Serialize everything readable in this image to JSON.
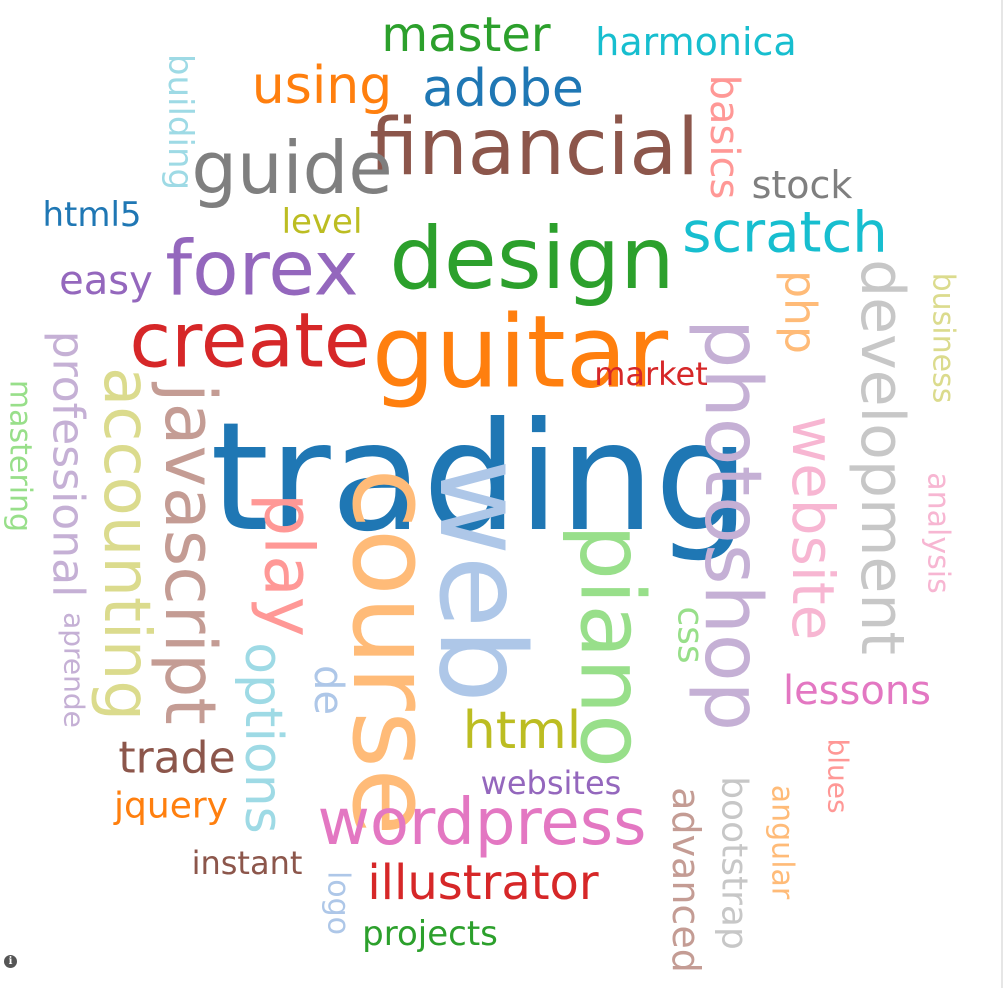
{
  "chart_data": {
    "type": "wordcloud",
    "title": "",
    "words": [
      {
        "text": "trading",
        "weight": 100,
        "color": "#1f77b4"
      },
      {
        "text": "guitar",
        "weight": 64,
        "color": "#ff7f0e"
      },
      {
        "text": "design",
        "weight": 60,
        "color": "#2ca02c"
      },
      {
        "text": "web",
        "weight": 74,
        "color": "#aec7e8"
      },
      {
        "text": "course",
        "weight": 68,
        "color": "#ffbb78"
      },
      {
        "text": "piano",
        "weight": 56,
        "color": "#98df8a"
      },
      {
        "text": "photoshop",
        "weight": 52,
        "color": "#c5b0d5"
      },
      {
        "text": "create",
        "weight": 52,
        "color": "#d62728"
      },
      {
        "text": "financial",
        "weight": 50,
        "color": "#8c564b"
      },
      {
        "text": "forex",
        "weight": 48,
        "color": "#9467bd"
      },
      {
        "text": "guide",
        "weight": 48,
        "color": "#7f7f7f"
      },
      {
        "text": "javascript",
        "weight": 48,
        "color": "#c49c94"
      },
      {
        "text": "play",
        "weight": 48,
        "color": "#ff9896"
      },
      {
        "text": "accounting",
        "weight": 44,
        "color": "#dbdb8d"
      },
      {
        "text": "development",
        "weight": 42,
        "color": "#c7c7c7"
      },
      {
        "text": "wordpress",
        "weight": 46,
        "color": "#e377c2"
      },
      {
        "text": "website",
        "weight": 42,
        "color": "#f7b6d2"
      },
      {
        "text": "scratch",
        "weight": 40,
        "color": "#17becf"
      },
      {
        "text": "professional",
        "weight": 34,
        "color": "#c5b0d5"
      },
      {
        "text": "options",
        "weight": 36,
        "color": "#9edae5"
      },
      {
        "text": "adobe",
        "weight": 38,
        "color": "#1f77b4"
      },
      {
        "text": "using",
        "weight": 38,
        "color": "#ff7f0e"
      },
      {
        "text": "master",
        "weight": 36,
        "color": "#2ca02c"
      },
      {
        "text": "html",
        "weight": 38,
        "color": "#bcbd22"
      },
      {
        "text": "illustrator",
        "weight": 36,
        "color": "#d62728"
      },
      {
        "text": "trade",
        "weight": 32,
        "color": "#8c564b"
      },
      {
        "text": "php",
        "weight": 32,
        "color": "#ffbb78"
      },
      {
        "text": "basics",
        "weight": 30,
        "color": "#ff9896"
      },
      {
        "text": "advanced",
        "weight": 30,
        "color": "#c49c94"
      },
      {
        "text": "bootstrap",
        "weight": 28,
        "color": "#c7c7c7"
      },
      {
        "text": "lessons",
        "weight": 30,
        "color": "#e377c2"
      },
      {
        "text": "de",
        "weight": 30,
        "color": "#aec7e8"
      },
      {
        "text": "harmonica",
        "weight": 28,
        "color": "#17becf"
      },
      {
        "text": "easy",
        "weight": 30,
        "color": "#9467bd"
      },
      {
        "text": "stock",
        "weight": 28,
        "color": "#7f7f7f"
      },
      {
        "text": "css",
        "weight": 28,
        "color": "#98df8a"
      },
      {
        "text": "building",
        "weight": 26,
        "color": "#9edae5"
      },
      {
        "text": "html5",
        "weight": 26,
        "color": "#1f77b4"
      },
      {
        "text": "level",
        "weight": 26,
        "color": "#bcbd22"
      },
      {
        "text": "business",
        "weight": 24,
        "color": "#dbdb8d"
      },
      {
        "text": "analysis",
        "weight": 24,
        "color": "#f7b6d2"
      },
      {
        "text": "mastering",
        "weight": 24,
        "color": "#98df8a"
      },
      {
        "text": "aprende",
        "weight": 22,
        "color": "#c5b0d5"
      },
      {
        "text": "market",
        "weight": 26,
        "color": "#d62728"
      },
      {
        "text": "websites",
        "weight": 26,
        "color": "#9467bd"
      },
      {
        "text": "jquery",
        "weight": 28,
        "color": "#ff7f0e"
      },
      {
        "text": "instant",
        "weight": 26,
        "color": "#8c564b"
      },
      {
        "text": "logo",
        "weight": 24,
        "color": "#aec7e8"
      },
      {
        "text": "projects",
        "weight": 26,
        "color": "#2ca02c"
      },
      {
        "text": "angular",
        "weight": 24,
        "color": "#ffbb78"
      },
      {
        "text": "blues",
        "weight": 22,
        "color": "#ff9896"
      }
    ]
  }
}
